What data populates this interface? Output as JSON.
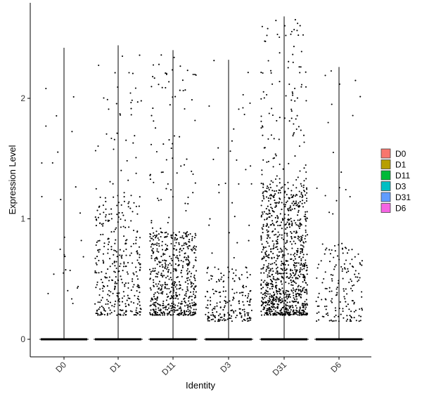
{
  "chart_data": {
    "type": "violin",
    "xlabel": "Identity",
    "ylabel": "Expression Level",
    "categories": [
      "D0",
      "D1",
      "D11",
      "D3",
      "D31",
      "D6"
    ],
    "ylim": [
      -0.15,
      2.8
    ],
    "yticks": [
      0,
      1,
      2
    ],
    "point_color": "#000000",
    "legend": {
      "position": "right",
      "entries": [
        {
          "label": "D0",
          "color": "#F8766D"
        },
        {
          "label": "D1",
          "color": "#B79F00"
        },
        {
          "label": "D11",
          "color": "#00BA38"
        },
        {
          "label": "D3",
          "color": "#00BFC4"
        },
        {
          "label": "D31",
          "color": "#619CFF"
        },
        {
          "label": "D6",
          "color": "#F564E3"
        }
      ]
    },
    "series": [
      {
        "name": "D0",
        "max": 2.42,
        "n_expressing": 28,
        "bulk": [
          0.25,
          2.4
        ]
      },
      {
        "name": "D1",
        "max": 2.44,
        "n_expressing": 380,
        "bulk": [
          0.2,
          1.2
        ]
      },
      {
        "name": "D11",
        "max": 2.4,
        "n_expressing": 650,
        "bulk": [
          0.2,
          0.9
        ]
      },
      {
        "name": "D3",
        "max": 2.32,
        "n_expressing": 220,
        "bulk": [
          0.15,
          0.6
        ]
      },
      {
        "name": "D31",
        "max": 2.68,
        "n_expressing": 1100,
        "bulk": [
          0.2,
          1.3
        ]
      },
      {
        "name": "D6",
        "max": 2.26,
        "n_expressing": 180,
        "bulk": [
          0.15,
          0.8
        ]
      }
    ]
  }
}
